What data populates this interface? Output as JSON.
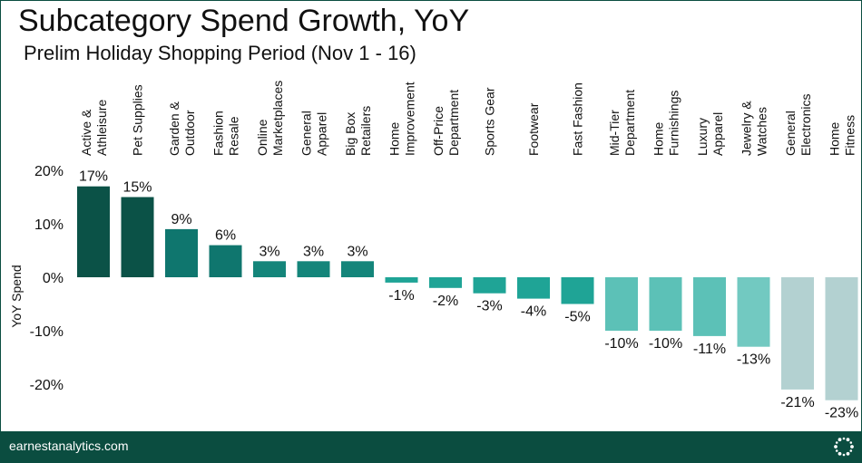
{
  "header": {
    "title": "Subcategory Spend Growth, YoY",
    "subtitle": "Prelim Holiday Shopping Period (Nov 1 - 16)"
  },
  "footer": {
    "site": "earnestanalytics.com",
    "logo_icon": "dotted-circle-logo-icon"
  },
  "chart_data": {
    "type": "bar",
    "title": "Subcategory Spend Growth, YoY",
    "subtitle": "Prelim Holiday Shopping Period (Nov 1 - 16)",
    "xlabel": "",
    "ylabel": "YoY Spend",
    "ylim": [
      -25,
      20
    ],
    "yticks": [
      20,
      10,
      0,
      -10,
      -20
    ],
    "ytick_labels": [
      "20%",
      "10%",
      "0%",
      "-10%",
      "-20%"
    ],
    "grid": false,
    "categories": [
      [
        "Active &",
        "Athleisure"
      ],
      [
        "Pet Supplies"
      ],
      [
        "Garden &",
        "Outdoor"
      ],
      [
        "Fashion",
        "Resale"
      ],
      [
        "Online",
        "Marketplaces"
      ],
      [
        "General",
        "Apparel"
      ],
      [
        "Big Box",
        "Retailers"
      ],
      [
        "Home",
        "Improvement"
      ],
      [
        "Off-Price",
        "Department"
      ],
      [
        "Sports Gear"
      ],
      [
        "Footwear"
      ],
      [
        "Fast Fashion"
      ],
      [
        "Mid-Tier",
        "Department"
      ],
      [
        "Home",
        "Furnishings"
      ],
      [
        "Luxury",
        "Apparel"
      ],
      [
        "Jewelry &",
        "Watches"
      ],
      [
        "General",
        "Electronics"
      ],
      [
        "Home",
        "Fitness"
      ]
    ],
    "values": [
      17,
      15,
      9,
      6,
      3,
      3,
      3,
      -1,
      -2,
      -3,
      -4,
      -5,
      -10,
      -10,
      -11,
      -13,
      -21,
      -23
    ],
    "data_labels": [
      "17%",
      "15%",
      "9%",
      "6%",
      "3%",
      "3%",
      "3%",
      "-1%",
      "-2%",
      "-3%",
      "-4%",
      "-5%",
      "-10%",
      "-10%",
      "-11%",
      "-13%",
      "-21%",
      "-23%"
    ],
    "colors": [
      "#0b5247",
      "#0b5247",
      "#0f766e",
      "#0f766e",
      "#14857a",
      "#14857a",
      "#14857a",
      "#1fa496",
      "#1fa496",
      "#1fa496",
      "#1fa496",
      "#1fa496",
      "#5cc1b7",
      "#5cc1b7",
      "#5cc1b7",
      "#72c9c1",
      "#b3d1d1",
      "#b3d1d1"
    ]
  }
}
